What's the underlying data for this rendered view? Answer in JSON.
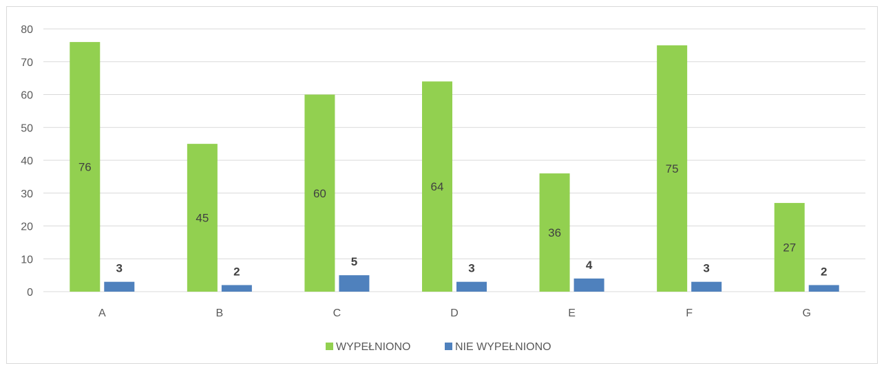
{
  "chart_data": {
    "type": "bar",
    "categories": [
      "A",
      "B",
      "C",
      "D",
      "E",
      "F",
      "G"
    ],
    "series": [
      {
        "name": "WYPEŁNIONO",
        "values": [
          76,
          45,
          60,
          64,
          36,
          75,
          27
        ],
        "color": "#92d050"
      },
      {
        "name": "NIE WYPEŁNIONO",
        "values": [
          3,
          2,
          5,
          3,
          4,
          3,
          2
        ],
        "color": "#4f81bd"
      }
    ],
    "title": "",
    "xlabel": "",
    "ylabel": "",
    "ylim": [
      0,
      80
    ],
    "yticks": [
      0,
      10,
      20,
      30,
      40,
      50,
      60,
      70,
      80
    ],
    "grid": true,
    "legend": "bottom",
    "gridline_color": "#d9d9d9"
  }
}
